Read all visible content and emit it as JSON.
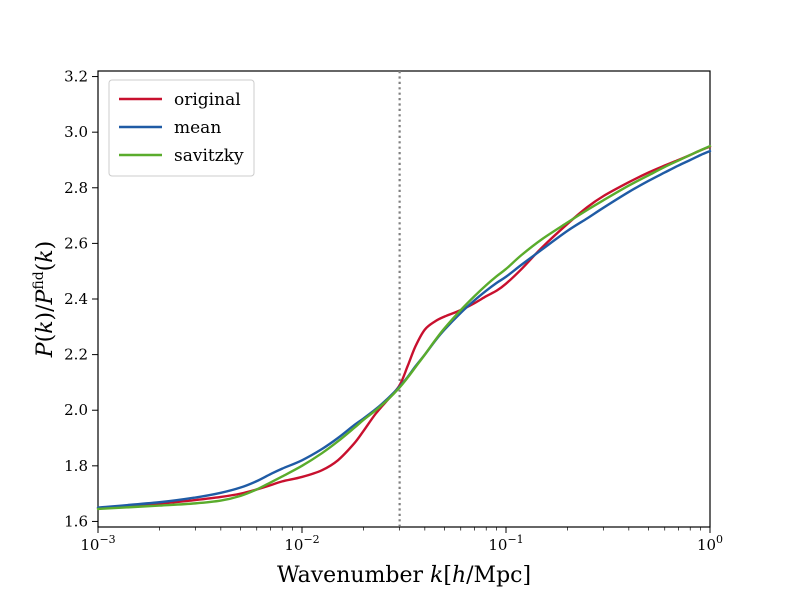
{
  "chart_data": {
    "type": "line",
    "xscale": "log",
    "xlim": [
      0.001,
      1.0
    ],
    "ylim": [
      1.58,
      3.22
    ],
    "xlabel": "Wavenumber k[h/Mpc]",
    "ylabel": "P(k)/P^fid(k)",
    "x_ticks": [
      {
        "value": 0.001,
        "base": "10",
        "exp": "−3"
      },
      {
        "value": 0.01,
        "base": "10",
        "exp": "−2"
      },
      {
        "value": 0.1,
        "base": "10",
        "exp": "−1"
      },
      {
        "value": 1.0,
        "base": "10",
        "exp": "0"
      }
    ],
    "y_ticks": [
      "1.6",
      "1.8",
      "2.0",
      "2.2",
      "2.4",
      "2.6",
      "2.8",
      "3.0",
      "3.2"
    ],
    "vline": {
      "x": 0.0301,
      "style": "dotted",
      "color": "#808080"
    },
    "legend_position": "top-left",
    "x": [
      0.001,
      0.002,
      0.003,
      0.004,
      0.005,
      0.006,
      0.007,
      0.008,
      0.01,
      0.0125,
      0.015,
      0.018,
      0.02,
      0.023,
      0.0265,
      0.0301,
      0.033,
      0.036,
      0.04,
      0.045,
      0.05,
      0.06,
      0.07,
      0.08,
      0.09,
      0.1,
      0.12,
      0.15,
      0.2,
      0.25,
      0.3,
      0.4,
      0.5,
      0.6,
      0.7,
      0.8,
      0.9,
      1.0
    ],
    "series": [
      {
        "name": "original",
        "color": "#c8102e",
        "values": [
          1.648,
          1.664,
          1.677,
          1.688,
          1.7,
          1.715,
          1.73,
          1.744,
          1.76,
          1.784,
          1.82,
          1.88,
          1.925,
          1.988,
          2.04,
          2.09,
          2.16,
          2.23,
          2.29,
          2.32,
          2.337,
          2.36,
          2.385,
          2.41,
          2.43,
          2.455,
          2.51,
          2.585,
          2.67,
          2.73,
          2.77,
          2.82,
          2.855,
          2.88,
          2.9,
          2.918,
          2.935,
          2.948
        ]
      },
      {
        "name": "mean",
        "color": "#1f5ba5",
        "values": [
          1.65,
          1.669,
          1.686,
          1.703,
          1.722,
          1.745,
          1.77,
          1.79,
          1.82,
          1.86,
          1.9,
          1.946,
          1.97,
          2.004,
          2.044,
          2.085,
          2.12,
          2.158,
          2.2,
          2.25,
          2.29,
          2.35,
          2.395,
          2.43,
          2.458,
          2.48,
          2.525,
          2.578,
          2.645,
          2.69,
          2.728,
          2.785,
          2.825,
          2.855,
          2.88,
          2.9,
          2.918,
          2.932
        ]
      },
      {
        "name": "savitzky",
        "color": "#5aac2c",
        "values": [
          1.645,
          1.657,
          1.665,
          1.675,
          1.692,
          1.715,
          1.74,
          1.762,
          1.8,
          1.845,
          1.888,
          1.936,
          1.965,
          2.0,
          2.04,
          2.082,
          2.118,
          2.155,
          2.2,
          2.252,
          2.295,
          2.36,
          2.41,
          2.45,
          2.482,
          2.508,
          2.56,
          2.615,
          2.675,
          2.72,
          2.755,
          2.808,
          2.845,
          2.875,
          2.898,
          2.918,
          2.935,
          2.95
        ]
      }
    ]
  }
}
